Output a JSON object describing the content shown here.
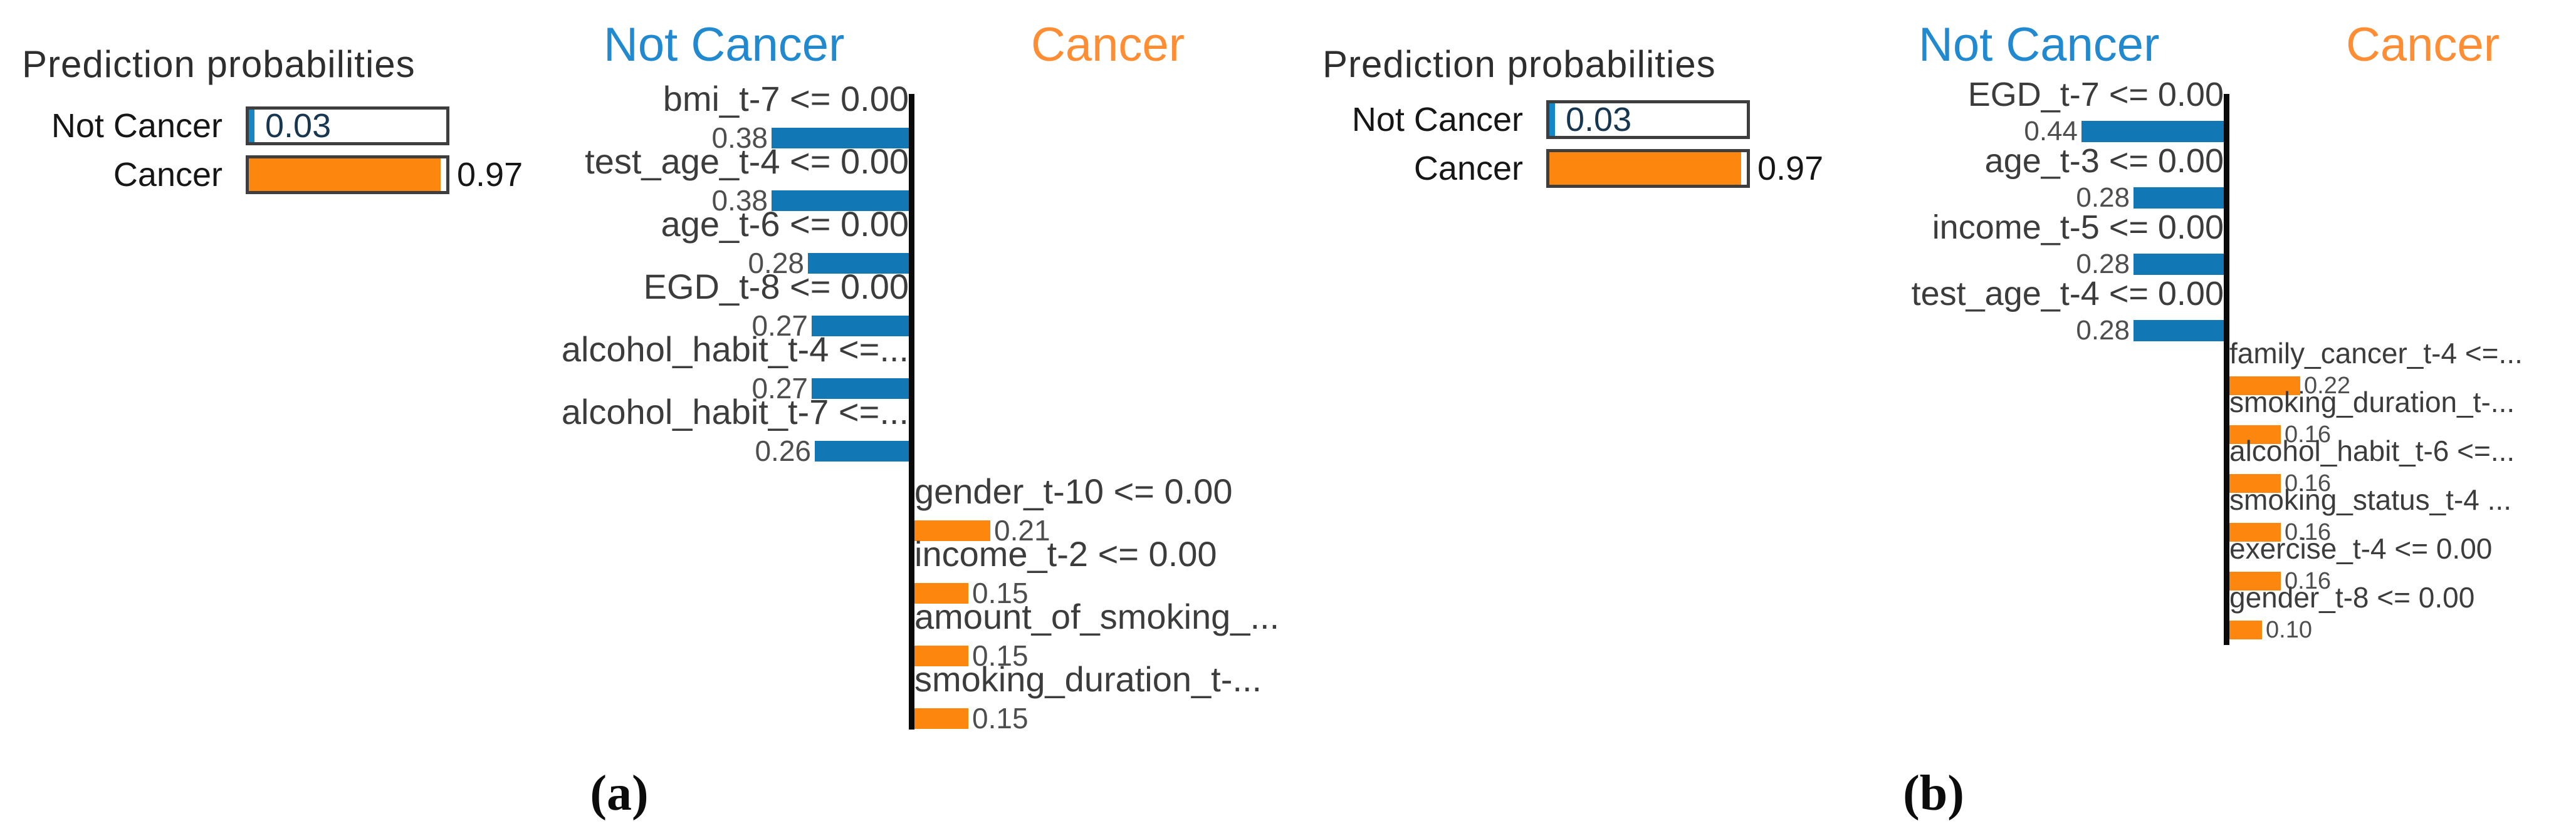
{
  "chart_data": [
    {
      "type": "bar",
      "panel_caption": "(a)",
      "prediction": {
        "title": "Prediction probabilities",
        "rows": [
          {
            "label": "Not Cancer",
            "value": 0.03,
            "value_text": "0.03",
            "color": "#1387c8"
          },
          {
            "label": "Cancer",
            "value": 0.97,
            "value_text": "0.97",
            "color": "#fd870e"
          }
        ]
      },
      "headers": {
        "negative": "Not Cancer",
        "positive": "Cancer"
      },
      "colors": {
        "negative": "#1278b5",
        "positive": "#fd870e",
        "negative_header": "#2089cf",
        "positive_header": "#ff8d33"
      },
      "negative_features": [
        {
          "label": "bmi_t-7 <= 0.00",
          "value": 0.38
        },
        {
          "label": "test_age_t-4 <= 0.00",
          "value": 0.38
        },
        {
          "label": "age_t-6 <= 0.00",
          "value": 0.28
        },
        {
          "label": "EGD_t-8 <= 0.00",
          "value": 0.27
        },
        {
          "label": "alcohol_habit_t-4 <=...",
          "value": 0.27
        },
        {
          "label": "alcohol_habit_t-7 <=...",
          "value": 0.26
        }
      ],
      "positive_features": [
        {
          "label": "gender_t-10 <= 0.00",
          "value": 0.21
        },
        {
          "label": "income_t-2 <= 0.00",
          "value": 0.15
        },
        {
          "label": "amount_of_smoking_...",
          "value": 0.15
        },
        {
          "label": "smoking_duration_t-...",
          "value": 0.15
        }
      ],
      "xlim": [
        0,
        0.38
      ],
      "legend_position": "top",
      "grid": false
    },
    {
      "type": "bar",
      "panel_caption": "(b)",
      "prediction": {
        "title": "Prediction probabilities",
        "rows": [
          {
            "label": "Not Cancer",
            "value": 0.03,
            "value_text": "0.03",
            "color": "#1387c8"
          },
          {
            "label": "Cancer",
            "value": 0.97,
            "value_text": "0.97",
            "color": "#fd870e"
          }
        ]
      },
      "headers": {
        "negative": "Not Cancer",
        "positive": "Cancer"
      },
      "colors": {
        "negative": "#1278b5",
        "positive": "#fd870e",
        "negative_header": "#2089cf",
        "positive_header": "#ff8d33"
      },
      "negative_features": [
        {
          "label": "EGD_t-7 <= 0.00",
          "value": 0.44
        },
        {
          "label": "age_t-3 <= 0.00",
          "value": 0.28
        },
        {
          "label": "income_t-5 <= 0.00",
          "value": 0.28
        },
        {
          "label": "test_age_t-4 <= 0.00",
          "value": 0.28
        }
      ],
      "positive_features": [
        {
          "label": "family_cancer_t-4 <=...",
          "value": 0.22
        },
        {
          "label": "smoking_duration_t-...",
          "value": 0.16
        },
        {
          "label": "alcohol_habit_t-6 <=...",
          "value": 0.16
        },
        {
          "label": "smoking_status_t-4 ...",
          "value": 0.16
        },
        {
          "label": "exercise_t-4 <= 0.00",
          "value": 0.16
        },
        {
          "label": "gender_t-8 <= 0.00",
          "value": 0.1
        }
      ],
      "xlim": [
        0,
        0.44
      ],
      "legend_position": "top",
      "grid": false
    }
  ]
}
